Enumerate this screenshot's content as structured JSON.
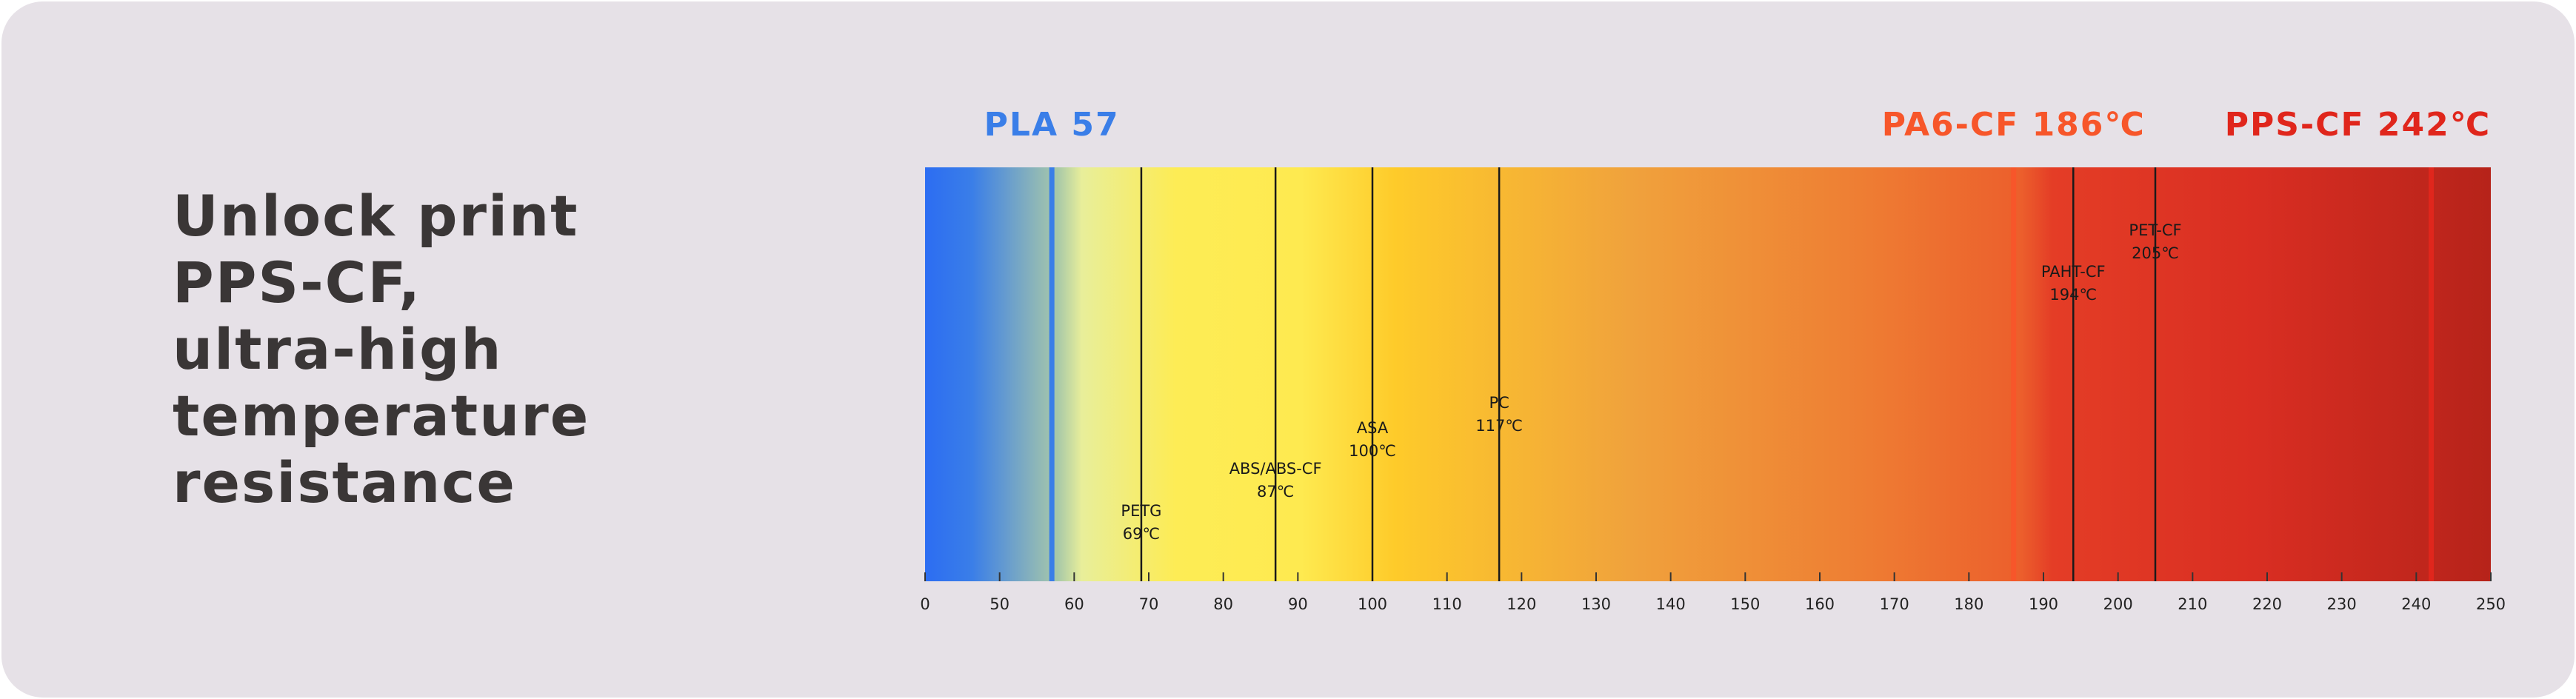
{
  "title": [
    "Unlock print",
    "PPS-CF,",
    "ultra-high",
    "temperature",
    "resistance"
  ],
  "chart_data": {
    "type": "temperature-scale",
    "xlim": [
      0,
      250
    ],
    "xticks": [
      0,
      50,
      60,
      70,
      80,
      90,
      100,
      110,
      120,
      130,
      140,
      150,
      160,
      170,
      180,
      190,
      200,
      210,
      220,
      230,
      240,
      250
    ],
    "highlights": [
      {
        "name": "PLA",
        "value": 57,
        "value_label": "57",
        "color": "#3a7ee8"
      },
      {
        "name": "PA6-CF",
        "value": 186,
        "value_label": "186℃",
        "color": "#f7562a"
      },
      {
        "name": "PPS-CF",
        "value": 242,
        "value_label": "242℃",
        "color": "#e0261c"
      }
    ],
    "markers": [
      {
        "name": "PETG",
        "value": 69,
        "value_label": "69℃"
      },
      {
        "name": "ABS/ABS-CF",
        "value": 87,
        "value_label": "87℃"
      },
      {
        "name": "ASA",
        "value": 100,
        "value_label": "100℃"
      },
      {
        "name": "PC",
        "value": 117,
        "value_label": "117℃"
      },
      {
        "name": "PAHT-CF",
        "value": 194,
        "value_label": "194℃"
      },
      {
        "name": "PET-CF",
        "value": 205,
        "value_label": "205℃"
      }
    ],
    "marker_color": "#1a1a1a"
  }
}
